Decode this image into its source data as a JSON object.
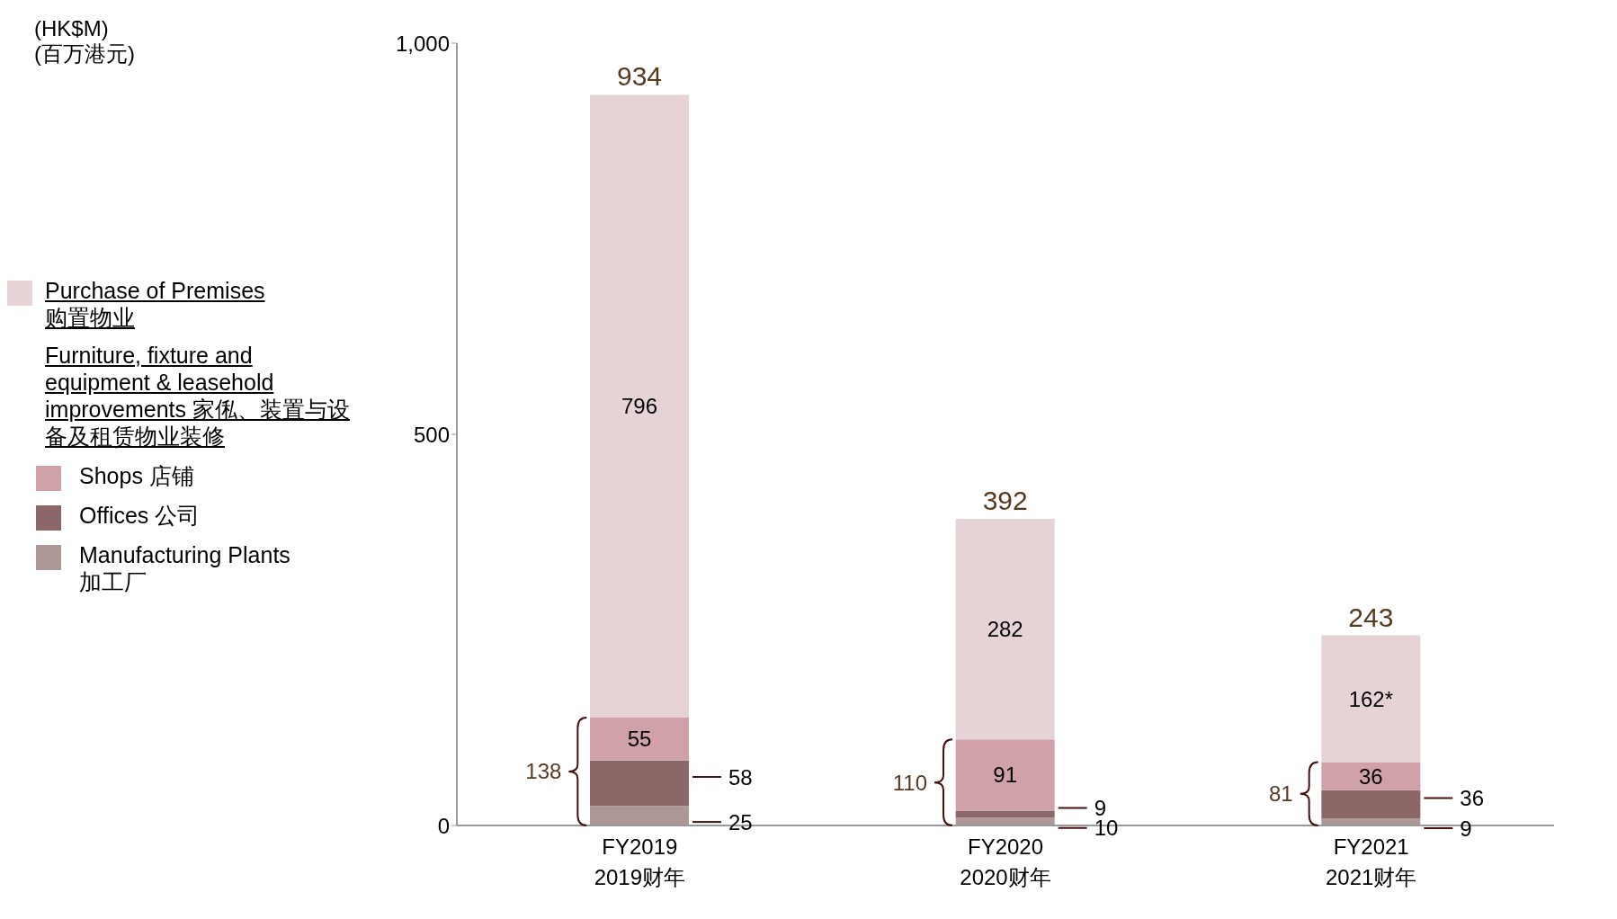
{
  "chart_data": {
    "type": "bar",
    "stacked": true,
    "categories": [
      "FY2019\n2019财年",
      "FY2020\n2020财年",
      "FY2021\n2021财年"
    ],
    "series": [
      {
        "name": "Manufacturing Plants\n加工厂",
        "color": "#ad9797",
        "values": [
          25,
          10,
          9
        ],
        "value_labels": [
          "25",
          "10",
          "9"
        ]
      },
      {
        "name": "Offices 公司",
        "color": "#8b6767",
        "values": [
          58,
          9,
          36
        ],
        "value_labels": [
          "58",
          "9",
          "36"
        ]
      },
      {
        "name": "Shops 店铺",
        "color": "#d0a1a9",
        "values": [
          55,
          91,
          36
        ],
        "value_labels": [
          "55",
          "91",
          "36"
        ]
      },
      {
        "name": "Purchase of Premises\n购置物业",
        "color": "#e6d3d6",
        "values": [
          796,
          282,
          162
        ],
        "value_labels": [
          "796",
          "282",
          "162*"
        ]
      }
    ],
    "totals": [
      "934",
      "392",
      "243"
    ],
    "annotations": [
      "(HK$M)\n(百万港元)",
      "Furniture, fixture and equipment & leasehold improvements 家俬、装置与设备及租赁物业装修",
      "138",
      "110",
      "81"
    ],
    "ylim": [
      0,
      1000
    ],
    "yticks": [
      0,
      {
        "value": 500,
        "label": "500"
      },
      {
        "value": 1000,
        "label": "1,000"
      }
    ],
    "legend": "left"
  }
}
